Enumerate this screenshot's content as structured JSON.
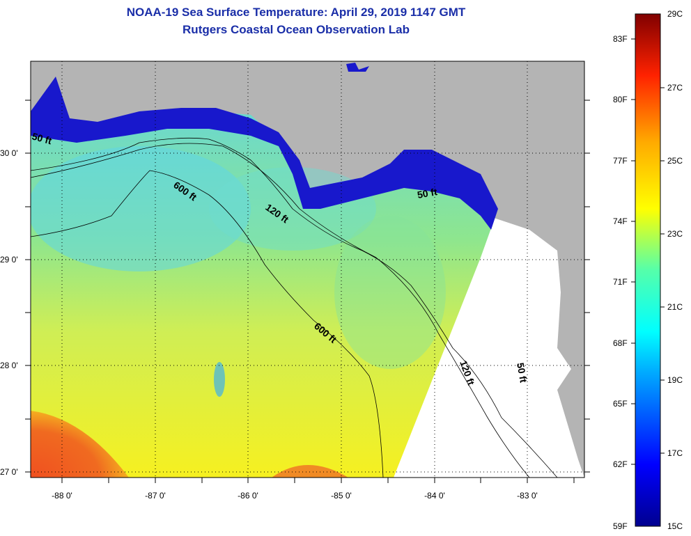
{
  "title_line1": "NOAA-19 Sea Surface Temperature:  April 29, 2019 1147 GMT",
  "title_line2": "Rutgers Coastal Ocean Observation Lab",
  "lat_ticks": [
    "30 0'",
    "29 0'",
    "28 0'",
    "27 0'"
  ],
  "lon_ticks": [
    "-88 0'",
    "-87 0'",
    "-86 0'",
    "-85 0'",
    "-84 0'",
    "-83 0'"
  ],
  "contours": [
    "50 ft",
    "600 ft",
    "120 ft",
    "50 ft",
    "600 ft",
    "120 ft",
    "50 ft"
  ],
  "colorbar": {
    "f_labels": [
      "83F",
      "80F",
      "77F",
      "74F",
      "71F",
      "68F",
      "65F",
      "62F",
      "59F"
    ],
    "c_labels": [
      "29C",
      "27C",
      "25C",
      "23C",
      "21C",
      "19C",
      "17C",
      "15C"
    ],
    "range_c": [
      15,
      29
    ],
    "range_f": [
      59,
      84
    ]
  },
  "colors": {
    "land": "#b4b4b4",
    "nodata": "#ffffff",
    "title": "#1a2ea8"
  }
}
